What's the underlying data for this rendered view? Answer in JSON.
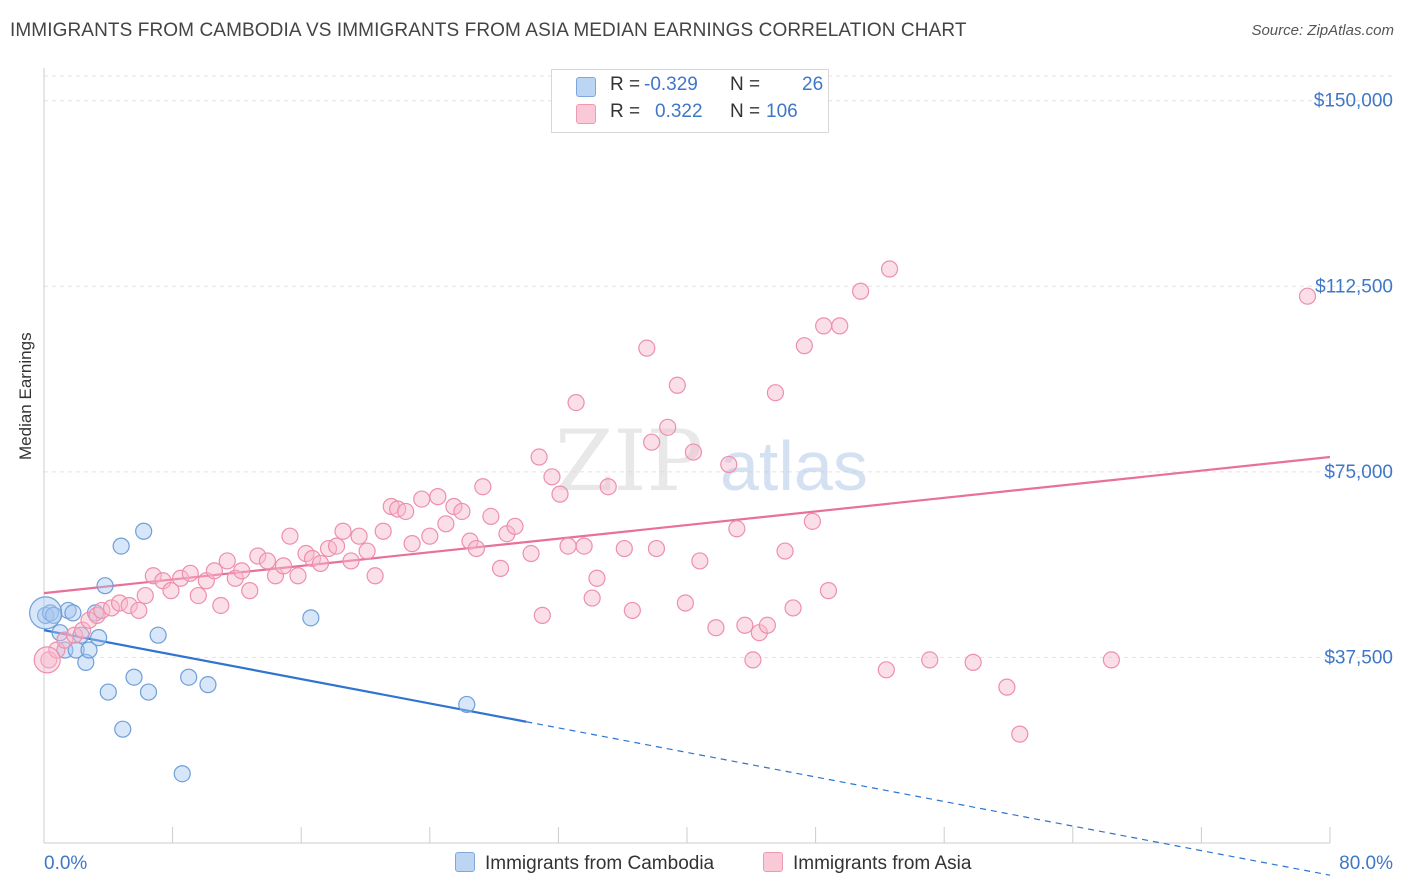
{
  "title": "IMMIGRANTS FROM CAMBODIA VS IMMIGRANTS FROM ASIA MEDIAN EARNINGS CORRELATION CHART",
  "source": "Source: ZipAtlas.com",
  "watermark": {
    "zip": "ZIP",
    "atlas": "atlas"
  },
  "legend_stats": [
    {
      "r_label": "R =",
      "r_value": "-0.329",
      "n_label": "N =",
      "n_value": "26",
      "color": "#a7c8f0"
    },
    {
      "r_label": "R =",
      "r_value": "0.322",
      "n_label": "N =",
      "n_value": "106",
      "color": "#f7b8cb"
    }
  ],
  "chart_data": {
    "type": "scatter",
    "ylabel": "Median Earnings",
    "xlim": [
      0,
      80
    ],
    "ylim": [
      0,
      155000
    ],
    "x_tick_labels": [
      "0.0%",
      "80.0%"
    ],
    "y_ticks": [
      {
        "value": 37500,
        "label": "$37,500"
      },
      {
        "value": 75000,
        "label": "$75,000"
      },
      {
        "value": 112500,
        "label": "$112,500"
      },
      {
        "value": 150000,
        "label": "$150,000"
      }
    ],
    "grid": true,
    "series": [
      {
        "name": "Immigrants from Cambodia",
        "color": "#a7c8f0",
        "stroke": "#6f9fd8",
        "trend_color": "#2f74d0",
        "trend": {
          "x0": 0,
          "y0": 43000,
          "x1": 30,
          "y1": 24500,
          "dash_to_x": 80,
          "dash_to_y": -6500
        },
        "points": [
          [
            0.1,
            46000
          ],
          [
            0.4,
            46500
          ],
          [
            0.6,
            46000
          ],
          [
            1.0,
            42500
          ],
          [
            1.3,
            39000
          ],
          [
            1.5,
            47000
          ],
          [
            1.8,
            46500
          ],
          [
            2.0,
            39000
          ],
          [
            2.3,
            42000
          ],
          [
            2.6,
            36500
          ],
          [
            2.8,
            39000
          ],
          [
            3.2,
            46500
          ],
          [
            3.4,
            41500
          ],
          [
            3.8,
            52000
          ],
          [
            4.0,
            30500
          ],
          [
            4.8,
            60000
          ],
          [
            4.9,
            23000
          ],
          [
            5.6,
            33500
          ],
          [
            6.2,
            63000
          ],
          [
            6.5,
            30500
          ],
          [
            7.1,
            42000
          ],
          [
            8.6,
            14000
          ],
          [
            9.0,
            33500
          ],
          [
            10.2,
            32000
          ],
          [
            16.6,
            45500
          ],
          [
            26.3,
            28000
          ]
        ]
      },
      {
        "name": "Immigrants from Asia",
        "color": "#f7b8cb",
        "stroke": "#ee8fab",
        "trend_color": "#e8709a",
        "trend": {
          "x0": 0,
          "y0": 50500,
          "x1": 80,
          "y1": 78000
        },
        "points": [
          [
            0.3,
            37000
          ],
          [
            0.8,
            39000
          ],
          [
            1.3,
            41000
          ],
          [
            1.9,
            42000
          ],
          [
            2.4,
            43000
          ],
          [
            2.8,
            45000
          ],
          [
            3.3,
            46000
          ],
          [
            3.6,
            47000
          ],
          [
            4.2,
            47500
          ],
          [
            4.7,
            48500
          ],
          [
            5.3,
            48000
          ],
          [
            5.9,
            47000
          ],
          [
            6.3,
            50000
          ],
          [
            6.8,
            54000
          ],
          [
            7.4,
            53000
          ],
          [
            7.9,
            51000
          ],
          [
            8.5,
            53500
          ],
          [
            9.1,
            54500
          ],
          [
            9.6,
            50000
          ],
          [
            10.1,
            53000
          ],
          [
            10.6,
            55000
          ],
          [
            11.0,
            48000
          ],
          [
            11.4,
            57000
          ],
          [
            11.9,
            53500
          ],
          [
            12.3,
            55000
          ],
          [
            12.8,
            51000
          ],
          [
            13.3,
            58000
          ],
          [
            13.9,
            57000
          ],
          [
            14.4,
            54000
          ],
          [
            14.9,
            56000
          ],
          [
            15.3,
            62000
          ],
          [
            15.8,
            54000
          ],
          [
            16.3,
            58500
          ],
          [
            16.7,
            57500
          ],
          [
            17.2,
            56500
          ],
          [
            17.7,
            59500
          ],
          [
            18.2,
            60000
          ],
          [
            18.6,
            63000
          ],
          [
            19.1,
            57000
          ],
          [
            19.6,
            62000
          ],
          [
            20.1,
            59000
          ],
          [
            20.6,
            54000
          ],
          [
            21.1,
            63000
          ],
          [
            21.6,
            68000
          ],
          [
            22.0,
            67500
          ],
          [
            22.5,
            67000
          ],
          [
            22.9,
            60500
          ],
          [
            23.5,
            69500
          ],
          [
            24.0,
            62000
          ],
          [
            24.5,
            70000
          ],
          [
            25.0,
            64500
          ],
          [
            25.5,
            68000
          ],
          [
            26.0,
            67000
          ],
          [
            26.5,
            61000
          ],
          [
            26.9,
            59500
          ],
          [
            27.3,
            72000
          ],
          [
            27.8,
            66000
          ],
          [
            28.4,
            55500
          ],
          [
            28.8,
            62500
          ],
          [
            29.3,
            64000
          ],
          [
            30.3,
            58500
          ],
          [
            30.8,
            78000
          ],
          [
            31.0,
            46000
          ],
          [
            31.6,
            74000
          ],
          [
            32.1,
            70500
          ],
          [
            32.6,
            60000
          ],
          [
            33.1,
            89000
          ],
          [
            33.6,
            60000
          ],
          [
            34.1,
            49500
          ],
          [
            34.4,
            53500
          ],
          [
            35.1,
            72000
          ],
          [
            36.1,
            59500
          ],
          [
            36.6,
            47000
          ],
          [
            37.5,
            100000
          ],
          [
            37.8,
            81000
          ],
          [
            38.1,
            59500
          ],
          [
            38.8,
            84000
          ],
          [
            39.4,
            92500
          ],
          [
            39.9,
            48500
          ],
          [
            40.4,
            79000
          ],
          [
            40.8,
            57000
          ],
          [
            41.8,
            43500
          ],
          [
            42.6,
            76500
          ],
          [
            43.1,
            63500
          ],
          [
            43.6,
            44000
          ],
          [
            44.1,
            37000
          ],
          [
            44.5,
            42500
          ],
          [
            45.0,
            44000
          ],
          [
            45.5,
            91000
          ],
          [
            46.1,
            59000
          ],
          [
            46.6,
            47500
          ],
          [
            47.3,
            100500
          ],
          [
            47.8,
            65000
          ],
          [
            48.5,
            104500
          ],
          [
            48.8,
            51000
          ],
          [
            49.5,
            104500
          ],
          [
            50.8,
            111500
          ],
          [
            52.4,
            35000
          ],
          [
            52.6,
            116000
          ],
          [
            55.1,
            37000
          ],
          [
            57.8,
            36500
          ],
          [
            59.9,
            31500
          ],
          [
            60.7,
            22000
          ],
          [
            66.4,
            37000
          ],
          [
            78.6,
            110500
          ]
        ]
      }
    ]
  }
}
